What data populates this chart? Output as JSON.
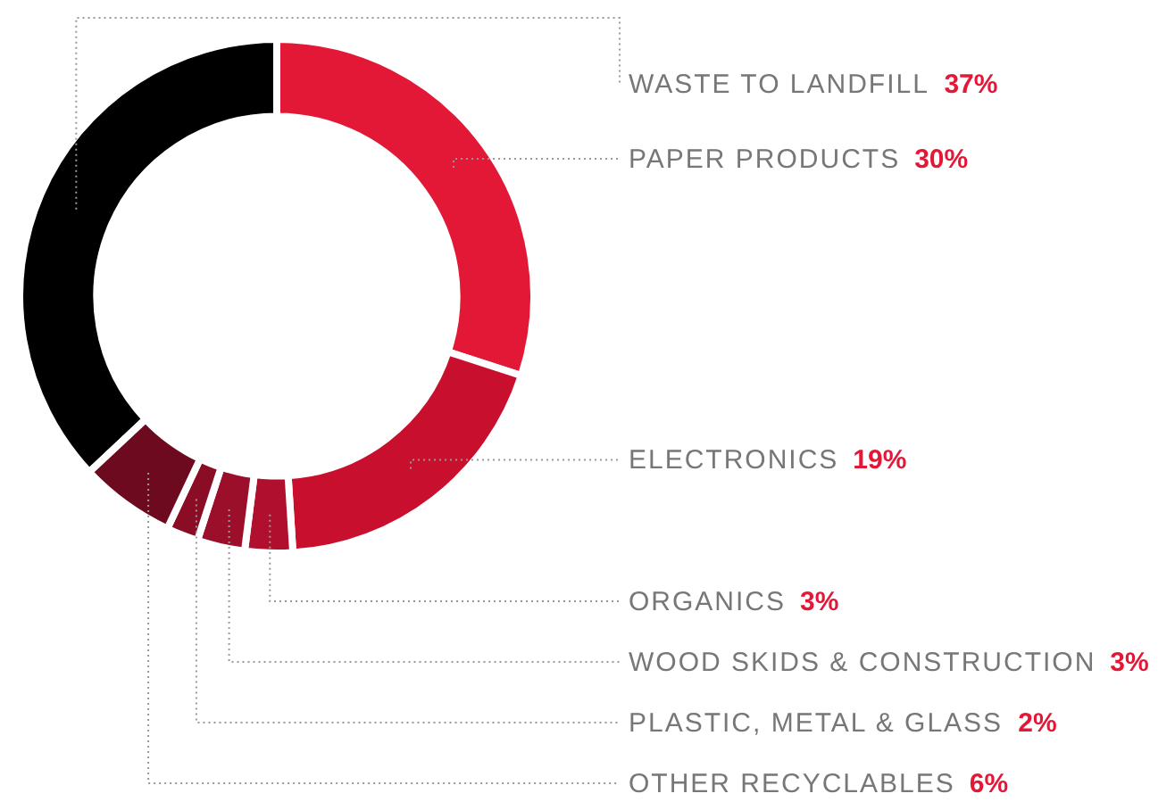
{
  "chart_data": {
    "type": "donut",
    "categories": [
      "WASTE TO LANDFILL",
      "PAPER PRODUCTS",
      "ELECTRONICS",
      "ORGANICS",
      "WOOD SKIDS & CONSTRUCTION",
      "PLASTIC, METAL & GLASS",
      "OTHER RECYCLABLES"
    ],
    "values": [
      37,
      30,
      19,
      3,
      3,
      2,
      6
    ],
    "value_labels": [
      "37%",
      "30%",
      "19%",
      "3%",
      "3%",
      "2%",
      "6%"
    ],
    "colors": [
      "#000000",
      "#e31837",
      "#c8102e",
      "#b0102d",
      "#9b0f2a",
      "#8a0c25",
      "#6e0a1f"
    ]
  }
}
